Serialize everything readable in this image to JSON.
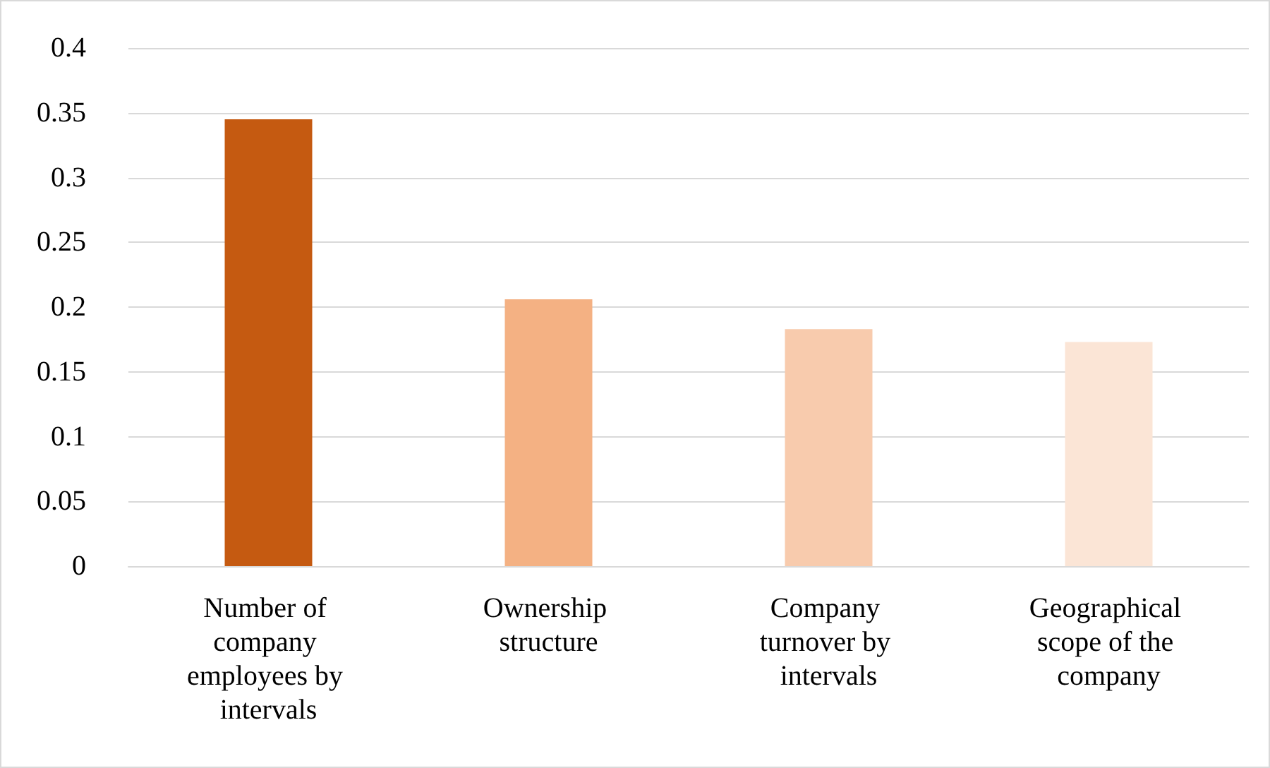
{
  "chart_data": {
    "type": "bar",
    "categories": [
      "Number of company employees by intervals",
      "Ownership structure",
      "Company turnover by intervals",
      "Geographical scope of the company"
    ],
    "values": [
      0.345,
      0.206,
      0.183,
      0.173
    ],
    "colors": [
      "#c55a11",
      "#f4b183",
      "#f8cbad",
      "#fbe5d6"
    ],
    "ylim": [
      0,
      0.4
    ],
    "yticks": [
      0,
      0.05,
      0.1,
      0.15,
      0.2,
      0.25,
      0.3,
      0.35,
      0.4
    ],
    "grid": "y"
  }
}
